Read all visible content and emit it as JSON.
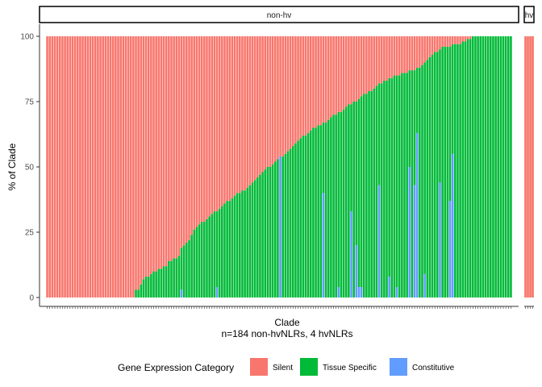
{
  "chart_data": {
    "type": "bar",
    "stacked": true,
    "xlabel": "Clade",
    "xlabel_sub": "n=184 non-hvNLRs, 4 hvNLRs",
    "ylabel": "% of Clade",
    "ylim": [
      0,
      100
    ],
    "yticks": [
      0,
      25,
      50,
      75,
      100
    ],
    "grid": false,
    "legend": {
      "title": "Gene Expression Category",
      "position": "bottom",
      "items": [
        {
          "name": "Silent",
          "color": "#F8766D"
        },
        {
          "name": "Tissue Specific",
          "color": "#00BA38"
        },
        {
          "name": "Constitutive",
          "color": "#619CFF"
        }
      ]
    },
    "panels": [
      {
        "label": "non-hv",
        "n_bars": 184,
        "stack_order_bottom_to_top": [
          "Constitutive",
          "Tissue Specific",
          "Silent"
        ],
        "silent_percent": [
          100,
          100,
          100,
          100,
          100,
          100,
          100,
          100,
          100,
          100,
          100,
          100,
          100,
          100,
          100,
          100,
          100,
          100,
          100,
          100,
          100,
          100,
          100,
          100,
          100,
          100,
          100,
          100,
          100,
          100,
          100,
          100,
          100,
          100,
          100,
          97,
          97,
          95,
          93,
          92,
          92,
          91,
          90,
          90,
          89,
          89,
          88,
          88,
          86,
          86,
          85,
          85,
          84,
          81,
          80,
          79,
          78,
          76,
          74,
          73,
          72,
          71,
          71,
          70,
          69,
          68,
          67,
          67,
          66,
          65,
          64,
          63,
          63,
          62,
          61,
          60,
          60,
          59,
          59,
          58,
          57,
          56,
          55,
          54,
          53,
          52,
          51,
          50,
          50,
          49,
          48,
          47,
          46,
          46,
          45,
          44,
          43,
          42,
          41,
          40,
          39,
          38,
          38,
          37,
          36,
          35,
          35,
          34,
          34,
          33,
          33,
          32,
          31,
          30,
          30,
          29,
          29,
          28,
          27,
          26,
          26,
          25,
          25,
          24,
          23,
          22,
          22,
          21,
          21,
          20,
          19,
          18,
          18,
          17,
          17,
          16,
          16,
          15,
          15,
          15,
          14,
          14,
          14,
          13,
          13,
          13,
          12,
          12,
          11,
          10,
          9,
          8,
          7,
          6,
          6,
          5,
          4,
          4,
          4,
          4,
          3,
          3,
          3,
          3,
          2,
          2,
          1,
          1,
          0,
          0,
          0,
          0,
          0,
          0,
          0,
          0,
          0,
          0,
          0,
          0,
          0,
          0,
          0,
          0
        ],
        "constitutive_percent": [
          0,
          0,
          0,
          0,
          0,
          0,
          0,
          0,
          0,
          0,
          0,
          0,
          0,
          0,
          0,
          0,
          0,
          0,
          0,
          0,
          0,
          0,
          0,
          0,
          0,
          0,
          0,
          0,
          0,
          0,
          0,
          0,
          0,
          0,
          0,
          0,
          0,
          0,
          0,
          0,
          0,
          0,
          0,
          0,
          0,
          0,
          0,
          0,
          0,
          0,
          0,
          0,
          0,
          3,
          0,
          0,
          0,
          0,
          0,
          0,
          0,
          0,
          0,
          0,
          0,
          0,
          0,
          4,
          0,
          0,
          0,
          0,
          0,
          0,
          0,
          0,
          0,
          0,
          0,
          0,
          0,
          0,
          0,
          0,
          0,
          0,
          0,
          0,
          0,
          0,
          0,
          0,
          54,
          0,
          0,
          0,
          0,
          0,
          0,
          0,
          0,
          0,
          0,
          0,
          0,
          0,
          0,
          0,
          0,
          40,
          0,
          0,
          0,
          0,
          0,
          4,
          0,
          0,
          0,
          0,
          33,
          0,
          20,
          4,
          4,
          0,
          0,
          0,
          0,
          0,
          0,
          43,
          0,
          0,
          0,
          8,
          0,
          0,
          4,
          0,
          0,
          0,
          0,
          50,
          0,
          43,
          63,
          0,
          0,
          9,
          0,
          0,
          0,
          0,
          0,
          44,
          0,
          0,
          0,
          37,
          55,
          0,
          0,
          0,
          0,
          0,
          0,
          0,
          0,
          0,
          0,
          0,
          0,
          0,
          0,
          0,
          0,
          0,
          0,
          0,
          0,
          0,
          0,
          0
        ]
      },
      {
        "label": "hv",
        "n_bars": 4,
        "stack_order_bottom_to_top": [
          "Constitutive",
          "Tissue Specific",
          "Silent"
        ],
        "silent_percent": [
          100,
          100,
          100,
          100
        ],
        "constitutive_percent": [
          0,
          0,
          0,
          0
        ]
      }
    ]
  }
}
